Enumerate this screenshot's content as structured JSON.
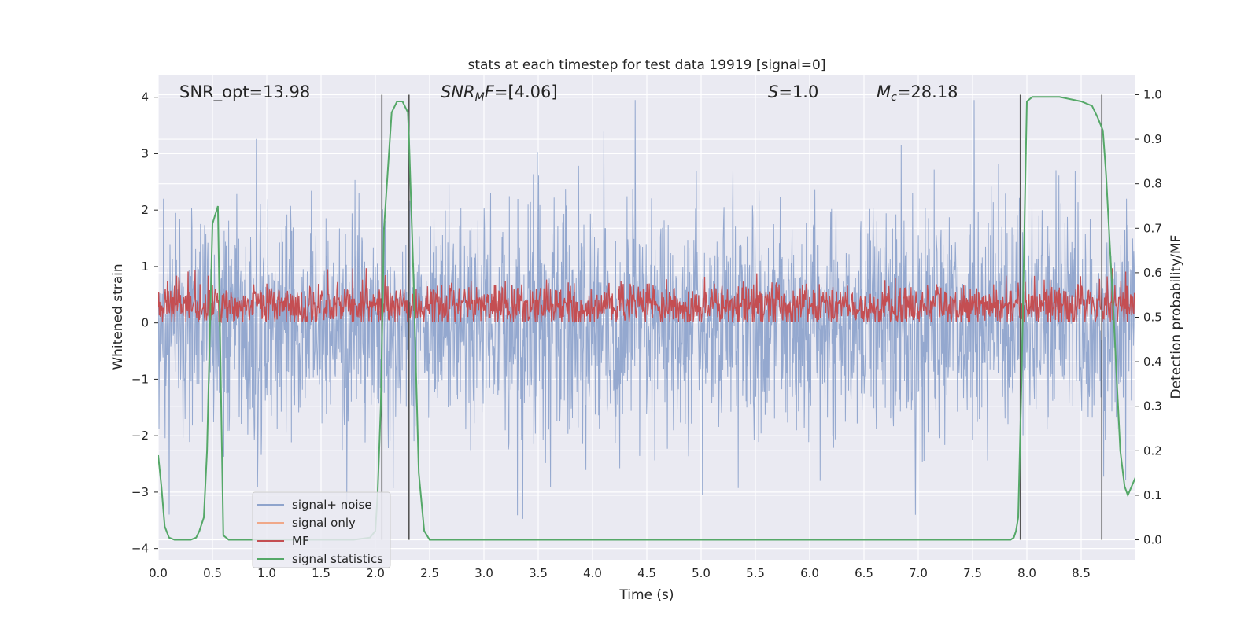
{
  "chart_data": {
    "type": "line",
    "title": "stats at each timestep for test data 19919 [signal=0]",
    "xlabel": "Time (s)",
    "ylabel": "Whitened strain",
    "y2label": "Detection probability/MF",
    "xlim": [
      0.0,
      9.0
    ],
    "ylim": [
      -4.2,
      4.4
    ],
    "y2lim": [
      -0.045,
      1.045
    ],
    "xticks": [
      "0.0",
      "0.5",
      "1.0",
      "1.5",
      "2.0",
      "2.5",
      "3.0",
      "3.5",
      "4.0",
      "4.5",
      "5.0",
      "5.5",
      "6.0",
      "6.5",
      "7.0",
      "7.5",
      "8.0",
      "8.5"
    ],
    "xtick_values": [
      0.0,
      0.5,
      1.0,
      1.5,
      2.0,
      2.5,
      3.0,
      3.5,
      4.0,
      4.5,
      5.0,
      5.5,
      6.0,
      6.5,
      7.0,
      7.5,
      8.0,
      8.5
    ],
    "yticks": [
      "−4",
      "−3",
      "−2",
      "−1",
      "0",
      "1",
      "2",
      "3",
      "4"
    ],
    "ytick_values": [
      -4,
      -3,
      -2,
      -1,
      0,
      1,
      2,
      3,
      4
    ],
    "y2ticks": [
      "0.0",
      "0.1",
      "0.2",
      "0.3",
      "0.4",
      "0.5",
      "0.6",
      "0.7",
      "0.8",
      "0.9",
      "1.0"
    ],
    "y2tick_values": [
      0.0,
      0.1,
      0.2,
      0.3,
      0.4,
      0.5,
      0.6,
      0.7,
      0.8,
      0.9,
      1.0
    ],
    "grid": true,
    "legend_position": "bottom-left",
    "annotations": {
      "snr_opt": "SNR_opt=13.98",
      "snr_mf_label": "SNR",
      "snr_mf_sub": "M",
      "snr_mf_tail": "F",
      "snr_mf_value": "=[4.06]",
      "s_label": "S",
      "s_value": "=1.0",
      "mc_label": "M",
      "mc_sub": "c",
      "mc_value": "=28.18"
    },
    "vlines": [
      2.06,
      2.31,
      7.94,
      8.69
    ],
    "series": [
      {
        "name": "signal+ noise",
        "color": "#8fa4cc",
        "description": "whitened noise, approx amplitude ±2 with spikes to ±4"
      },
      {
        "name": "signal only",
        "color": "#f0a889",
        "values": []
      },
      {
        "name": "MF",
        "color": "#c44e52",
        "description": "matched filter output around 0.3, range 0 to 0.9"
      },
      {
        "name": "signal statistics",
        "color": "#55a868",
        "axis": "right",
        "x": [
          0.0,
          0.03,
          0.06,
          0.1,
          0.15,
          0.2,
          0.3,
          0.35,
          0.38,
          0.42,
          0.45,
          0.5,
          0.55,
          0.6,
          0.65,
          0.7,
          0.75,
          1.8,
          1.95,
          2.0,
          2.02,
          2.05,
          2.08,
          2.12,
          2.15,
          2.2,
          2.25,
          2.3,
          2.31,
          2.35,
          2.4,
          2.45,
          2.5,
          2.55,
          7.85,
          7.88,
          7.9,
          7.92,
          7.95,
          8.0,
          8.05,
          8.1,
          8.3,
          8.5,
          8.6,
          8.65,
          8.7,
          8.73,
          8.76,
          8.8,
          8.83,
          8.86,
          8.9,
          8.93,
          9.0
        ],
        "values": [
          0.19,
          0.12,
          0.03,
          0.005,
          0.0,
          0.0,
          0.0,
          0.005,
          0.02,
          0.05,
          0.2,
          0.71,
          0.75,
          0.01,
          0.0,
          0.0,
          0.0,
          0.0,
          0.005,
          0.02,
          0.1,
          0.3,
          0.7,
          0.85,
          0.96,
          0.985,
          0.985,
          0.96,
          0.9,
          0.6,
          0.15,
          0.02,
          0.0,
          0.0,
          0.0,
          0.005,
          0.02,
          0.05,
          0.35,
          0.985,
          0.995,
          0.995,
          0.995,
          0.985,
          0.975,
          0.95,
          0.92,
          0.82,
          0.68,
          0.5,
          0.35,
          0.2,
          0.12,
          0.1,
          0.14
        ]
      }
    ]
  }
}
